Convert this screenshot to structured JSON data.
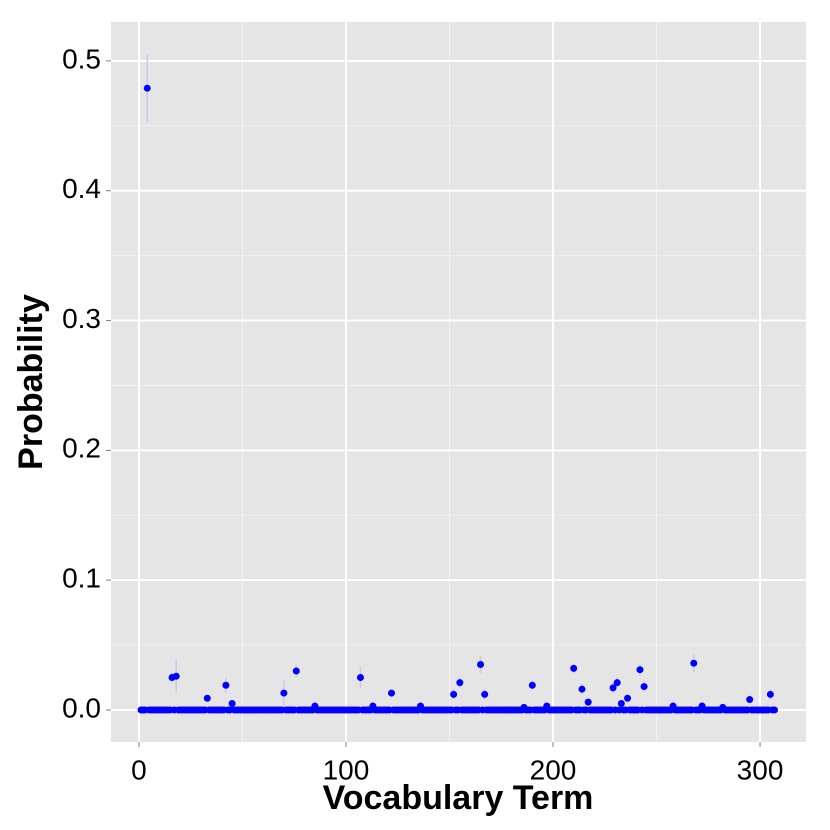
{
  "chart_data": {
    "type": "scatter",
    "x_label": "Vocabulary Term",
    "y_label": "Probability",
    "color": "#0000ff",
    "error_color": "#c8c8f0",
    "panel_color": "#e5e5e5",
    "grid": true,
    "xlim": [
      -13.5,
      322.2
    ],
    "ylim": [
      -0.0247,
      0.53
    ],
    "xticks": [
      0,
      100,
      200,
      300
    ],
    "yticks": [
      {
        "value": 0,
        "label": "0.0"
      },
      0.1,
      0.2,
      0.3,
      0.4,
      0.5
    ],
    "xminor": [
      50,
      150,
      250
    ],
    "yminor": [
      0.05,
      0.15,
      0.25,
      0.35,
      0.45
    ],
    "x": [
      1,
      2,
      3,
      4,
      5,
      6,
      7,
      8,
      9,
      10,
      11,
      12,
      13,
      14,
      15,
      16,
      17,
      18,
      19,
      20,
      21,
      22,
      23,
      24,
      25,
      26,
      27,
      28,
      29,
      30,
      31,
      32,
      33,
      34,
      35,
      36,
      37,
      38,
      39,
      40,
      41,
      42,
      43,
      44,
      45,
      46,
      47,
      48,
      49,
      50,
      51,
      52,
      53,
      54,
      55,
      56,
      57,
      58,
      59,
      60,
      61,
      62,
      63,
      64,
      65,
      66,
      67,
      68,
      69,
      70,
      71,
      72,
      73,
      74,
      75,
      76,
      77,
      78,
      79,
      80,
      81,
      82,
      83,
      84,
      85,
      86,
      87,
      88,
      89,
      90,
      91,
      92,
      93,
      94,
      95,
      96,
      97,
      98,
      99,
      100,
      101,
      102,
      103,
      104,
      105,
      106,
      107,
      108,
      109,
      110,
      111,
      112,
      113,
      114,
      115,
      116,
      117,
      118,
      119,
      120,
      121,
      122,
      123,
      124,
      125,
      126,
      127,
      128,
      129,
      130,
      131,
      132,
      133,
      134,
      135,
      136,
      137,
      138,
      139,
      140,
      141,
      142,
      143,
      144,
      145,
      146,
      147,
      148,
      149,
      150,
      151,
      152,
      153,
      154,
      155,
      156,
      157,
      158,
      159,
      160,
      161,
      162,
      163,
      164,
      165,
      166,
      167,
      168,
      169,
      170,
      171,
      172,
      173,
      174,
      175,
      176,
      177,
      178,
      179,
      180,
      181,
      182,
      183,
      184,
      185,
      186,
      187,
      188,
      189,
      190,
      191,
      192,
      193,
      194,
      195,
      196,
      197,
      198,
      199,
      200,
      201,
      202,
      203,
      204,
      205,
      206,
      207,
      208,
      209,
      210,
      211,
      212,
      213,
      214,
      215,
      216,
      217,
      218,
      219,
      220,
      221,
      222,
      223,
      224,
      225,
      226,
      227,
      228,
      229,
      230,
      231,
      232,
      233,
      234,
      235,
      236,
      237,
      238,
      239,
      240,
      241,
      242,
      243,
      244,
      245,
      246,
      247,
      248,
      249,
      250,
      251,
      252,
      253,
      254,
      255,
      256,
      257,
      258,
      259,
      260,
      261,
      262,
      263,
      264,
      265,
      266,
      267,
      268,
      269,
      270,
      271,
      272,
      273,
      274,
      275,
      276,
      277,
      278,
      279,
      280,
      281,
      282,
      283,
      284,
      285,
      286,
      287,
      288,
      289,
      290,
      291,
      292,
      293,
      294,
      295,
      296,
      297,
      298,
      299,
      300,
      301,
      302,
      303,
      304,
      305,
      306,
      307
    ],
    "values": [
      0,
      0,
      0,
      0.479,
      0,
      0,
      0,
      0,
      0,
      0,
      0,
      0,
      0,
      0,
      0,
      0.025,
      0,
      0.026,
      0,
      0,
      0,
      0,
      0,
      0,
      0,
      0,
      0,
      0,
      0,
      0,
      0,
      0,
      0.009,
      0,
      0,
      0,
      0,
      0,
      0,
      0,
      0,
      0.019,
      0,
      0,
      0.005,
      0,
      0,
      0,
      0,
      0,
      0,
      0,
      0,
      0,
      0,
      0,
      0,
      0,
      0,
      0,
      0,
      0,
      0,
      0,
      0,
      0,
      0,
      0,
      0,
      0.013,
      0,
      0,
      0,
      0,
      0,
      0.03,
      0,
      0,
      0,
      0,
      0,
      0,
      0,
      0,
      0.003,
      0,
      0,
      0,
      0,
      0,
      0,
      0,
      0,
      0,
      0,
      0,
      0,
      0,
      0,
      0,
      0,
      0,
      0,
      0,
      0,
      0,
      0.025,
      0,
      0,
      0,
      0,
      0,
      0.003,
      0,
      0,
      0,
      0,
      0,
      0,
      0,
      0,
      0.013,
      0,
      0,
      0,
      0,
      0,
      0,
      0,
      0,
      0,
      0,
      0,
      0,
      0,
      0.003,
      0,
      0,
      0,
      0,
      0,
      0,
      0,
      0,
      0,
      0,
      0,
      0,
      0,
      0,
      0,
      0.012,
      0,
      0,
      0.021,
      0,
      0,
      0,
      0,
      0,
      0,
      0,
      0,
      0,
      0.035,
      0,
      0.012,
      0,
      0,
      0,
      0,
      0,
      0,
      0,
      0,
      0,
      0,
      0,
      0,
      0,
      0,
      0,
      0,
      0,
      0,
      0.002,
      0,
      0,
      0,
      0.019,
      0,
      0,
      0,
      0,
      0,
      0,
      0.003,
      0,
      0,
      0,
      0,
      0,
      0,
      0,
      0,
      0,
      0,
      0,
      0,
      0.032,
      0,
      0,
      0,
      0.016,
      0,
      0,
      0.006,
      0,
      0,
      0,
      0,
      0,
      0,
      0,
      0,
      0,
      0,
      0,
      0.017,
      0,
      0.021,
      0,
      0.005,
      0,
      0,
      0.009,
      0,
      0,
      0,
      0,
      0,
      0.031,
      0,
      0.018,
      0,
      0,
      0,
      0,
      0,
      0,
      0,
      0,
      0,
      0,
      0,
      0,
      0,
      0.003,
      0,
      0,
      0,
      0,
      0,
      0,
      0,
      0,
      0,
      0.036,
      0,
      0,
      0,
      0.003,
      0,
      0,
      0,
      0,
      0,
      0,
      0,
      0,
      0,
      0.002,
      0,
      0,
      0,
      0,
      0,
      0,
      0,
      0,
      0,
      0,
      0,
      0,
      0.008,
      0,
      0,
      0,
      0,
      0,
      0,
      0,
      0,
      0,
      0.012,
      0,
      0
    ],
    "errors": [
      0,
      0,
      0,
      0.026,
      0,
      0,
      0,
      0,
      0,
      0,
      0,
      0,
      0,
      0,
      0,
      0.004,
      0,
      0.013,
      0,
      0,
      0,
      0,
      0,
      0,
      0,
      0,
      0,
      0,
      0,
      0,
      0,
      0,
      0.002,
      0,
      0,
      0,
      0,
      0,
      0,
      0,
      0,
      0.006,
      0,
      0,
      0.002,
      0,
      0,
      0,
      0,
      0,
      0,
      0,
      0,
      0,
      0,
      0,
      0,
      0,
      0,
      0,
      0,
      0,
      0,
      0,
      0,
      0,
      0,
      0,
      0,
      0.01,
      0,
      0,
      0,
      0,
      0,
      0.005,
      0,
      0,
      0,
      0,
      0,
      0,
      0,
      0,
      0.002,
      0,
      0,
      0,
      0,
      0,
      0,
      0,
      0,
      0,
      0,
      0,
      0,
      0,
      0,
      0,
      0,
      0,
      0,
      0,
      0,
      0,
      0.008,
      0,
      0,
      0,
      0,
      0,
      0.002,
      0,
      0,
      0,
      0,
      0,
      0,
      0,
      0,
      0.003,
      0,
      0,
      0,
      0,
      0,
      0,
      0,
      0,
      0,
      0,
      0,
      0,
      0,
      0.002,
      0,
      0,
      0,
      0,
      0,
      0,
      0,
      0,
      0,
      0,
      0,
      0,
      0,
      0,
      0,
      0.004,
      0,
      0,
      0.004,
      0,
      0,
      0,
      0,
      0,
      0,
      0,
      0,
      0,
      0.007,
      0,
      0.004,
      0,
      0,
      0,
      0,
      0,
      0,
      0,
      0,
      0,
      0,
      0,
      0,
      0,
      0,
      0,
      0,
      0,
      0,
      0.002,
      0,
      0,
      0,
      0.004,
      0,
      0,
      0,
      0,
      0,
      0,
      0.002,
      0,
      0,
      0,
      0,
      0,
      0,
      0,
      0,
      0,
      0,
      0,
      0,
      0.004,
      0,
      0,
      0,
      0.004,
      0,
      0,
      0.003,
      0,
      0,
      0,
      0,
      0,
      0,
      0,
      0,
      0,
      0,
      0,
      0.004,
      0,
      0.004,
      0,
      0.002,
      0,
      0,
      0.003,
      0,
      0,
      0,
      0,
      0,
      0.005,
      0,
      0.004,
      0,
      0,
      0,
      0,
      0,
      0,
      0,
      0,
      0,
      0,
      0,
      0,
      0,
      0.002,
      0,
      0,
      0,
      0,
      0,
      0,
      0,
      0,
      0,
      0.007,
      0,
      0,
      0,
      0.002,
      0,
      0,
      0,
      0,
      0,
      0,
      0,
      0,
      0,
      0.002,
      0,
      0,
      0,
      0,
      0,
      0,
      0,
      0,
      0,
      0,
      0,
      0,
      0.003,
      0,
      0,
      0,
      0,
      0,
      0,
      0,
      0,
      0,
      0.004,
      0,
      0
    ]
  }
}
